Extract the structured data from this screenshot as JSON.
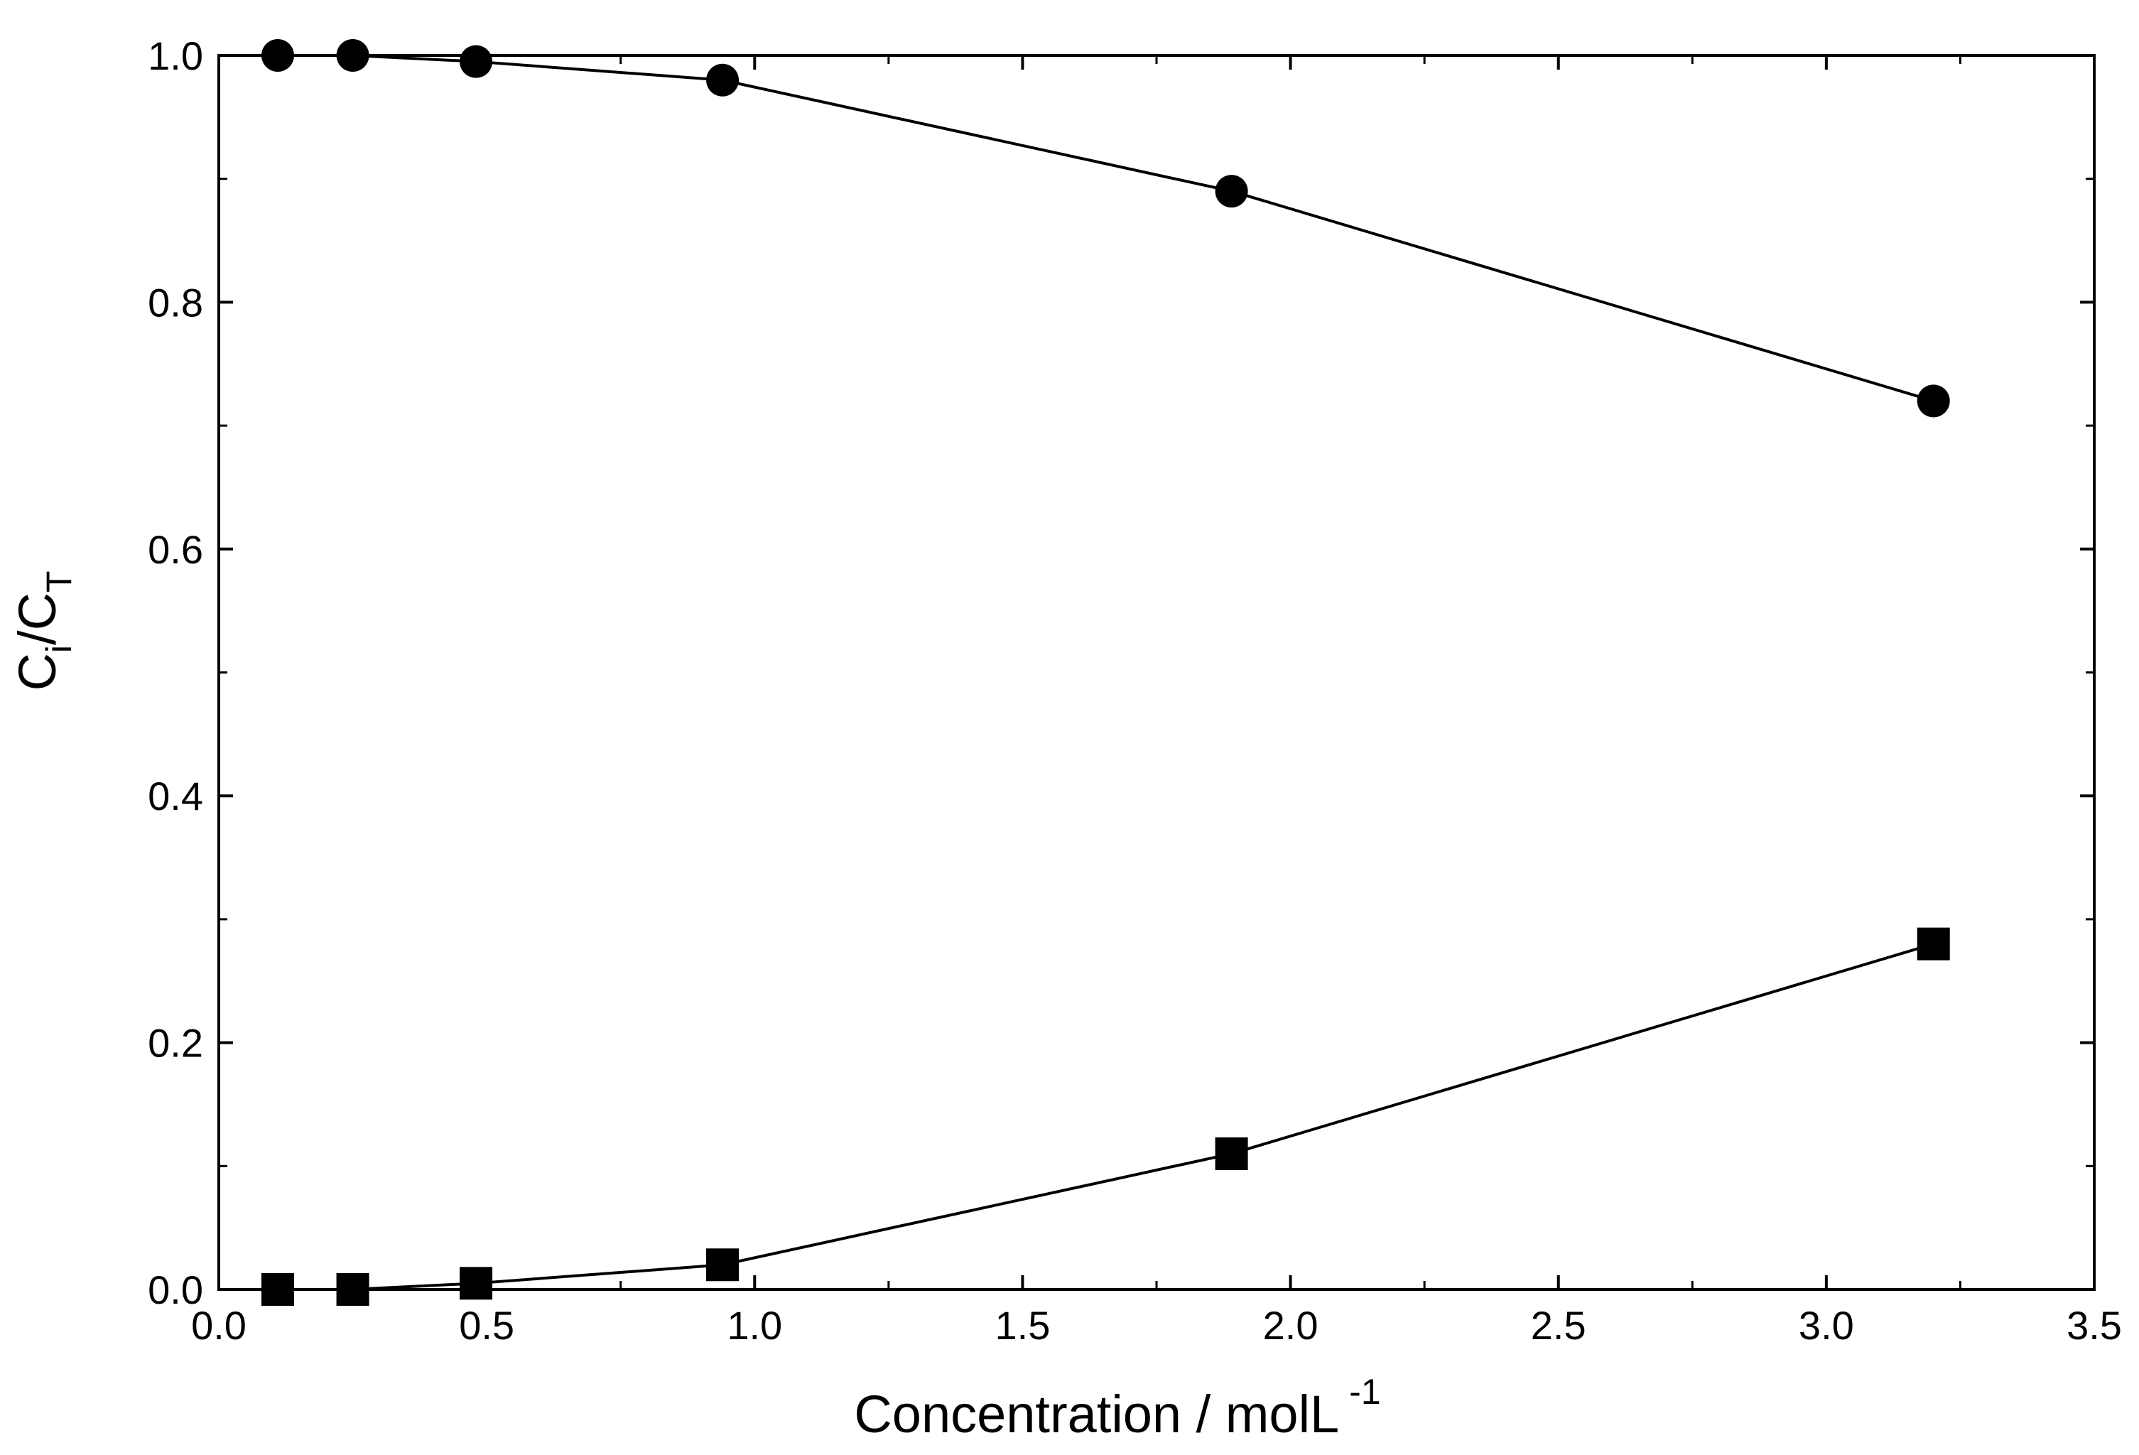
{
  "chart_data": {
    "type": "line",
    "title": "",
    "xlabel": "Concentration / molL",
    "xlabel_superscript": "-1",
    "ylabel_main": "C",
    "ylabel_sub_1": "i",
    "ylabel_slash": "/C",
    "ylabel_sub_2": "T",
    "xlim": [
      0.0,
      3.5
    ],
    "ylim": [
      0.0,
      1.0
    ],
    "x_ticks": [
      0.0,
      0.5,
      1.0,
      1.5,
      2.0,
      2.5,
      3.0,
      3.5
    ],
    "x_tick_labels": [
      "0.0",
      "0.5",
      "1.0",
      "1.5",
      "2.0",
      "2.5",
      "3.0",
      "3.5"
    ],
    "x_minor_ticks": [
      0.25,
      0.75,
      1.25,
      1.75,
      2.25,
      2.75,
      3.25
    ],
    "y_ticks": [
      0.0,
      0.2,
      0.4,
      0.6,
      0.8,
      1.0
    ],
    "y_tick_labels": [
      "0.0",
      "0.2",
      "0.4",
      "0.6",
      "0.8",
      "1.0"
    ],
    "y_minor_ticks": [
      0.1,
      0.3,
      0.5,
      0.7,
      0.9
    ],
    "grid": false,
    "series": [
      {
        "name": "circles",
        "marker": "circle",
        "color": "#000000",
        "x": [
          0.11,
          0.25,
          0.48,
          0.94,
          1.89,
          3.2
        ],
        "y": [
          1.0,
          1.0,
          0.995,
          0.98,
          0.89,
          0.72
        ]
      },
      {
        "name": "squares",
        "marker": "square",
        "color": "#000000",
        "x": [
          0.11,
          0.25,
          0.48,
          0.94,
          1.89,
          3.2
        ],
        "y": [
          0.0,
          0.0,
          0.005,
          0.02,
          0.11,
          0.28
        ]
      }
    ]
  }
}
